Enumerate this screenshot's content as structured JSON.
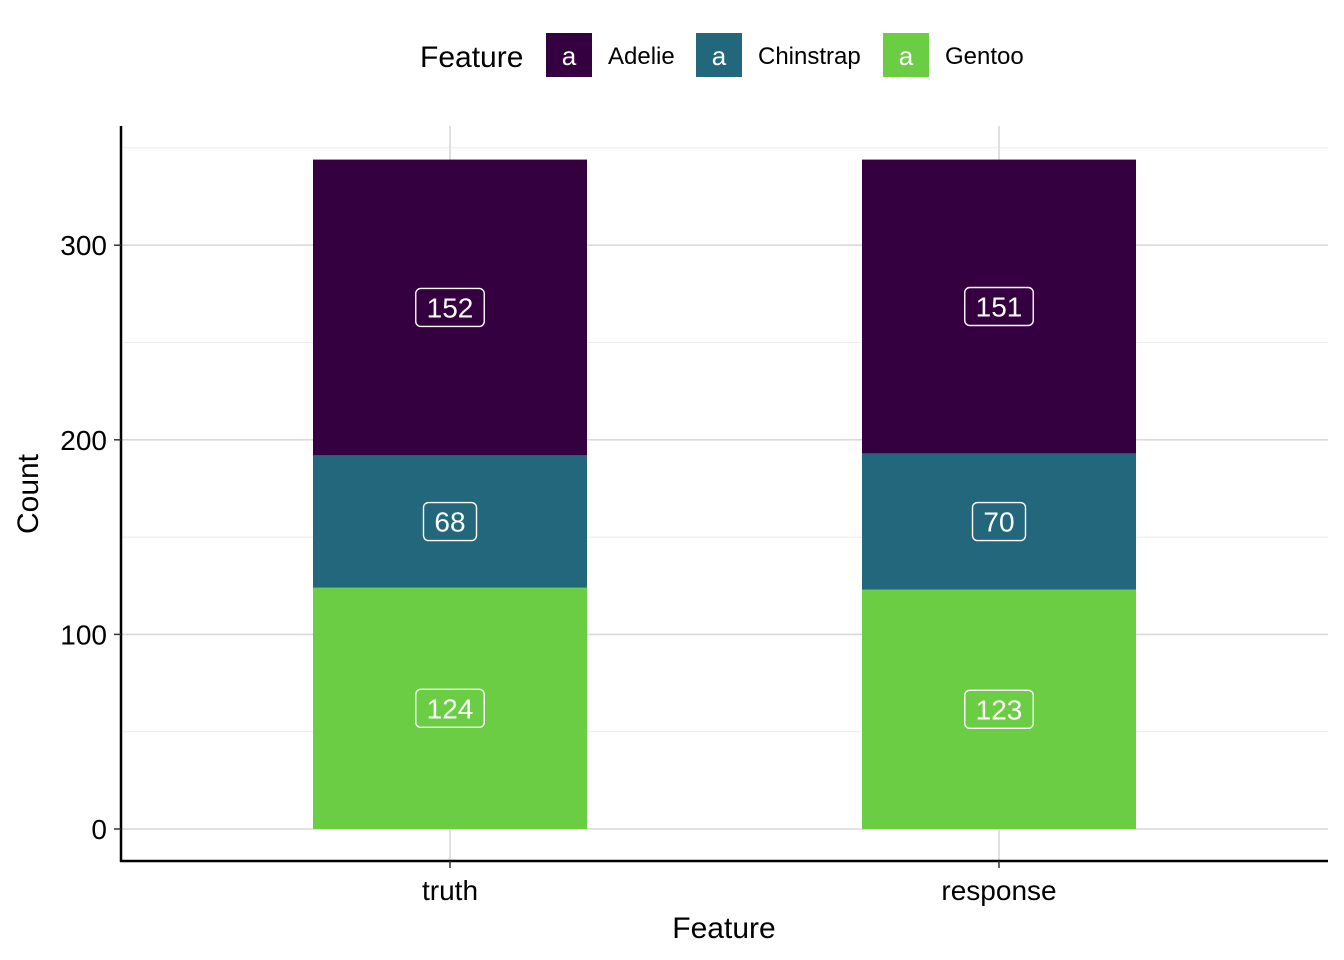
{
  "chart_data": {
    "type": "bar",
    "stacked": true,
    "categories": [
      "truth",
      "response"
    ],
    "series": [
      {
        "name": "Gentoo",
        "color": "#6ACD44",
        "values": [
          124,
          123
        ]
      },
      {
        "name": "Chinstrap",
        "color": "#23677D",
        "values": [
          68,
          70
        ]
      },
      {
        "name": "Adelie",
        "color": "#35003F",
        "values": [
          152,
          151
        ]
      }
    ],
    "legend": {
      "title": "Feature",
      "position": "top",
      "key_glyph": "a",
      "entries": [
        "Adelie",
        "Chinstrap",
        "Gentoo"
      ]
    },
    "xlabel": "Feature",
    "ylabel": "Count",
    "yticks": [
      0,
      100,
      200,
      300
    ],
    "ylim": [
      -17,
      361
    ],
    "grid": true
  }
}
